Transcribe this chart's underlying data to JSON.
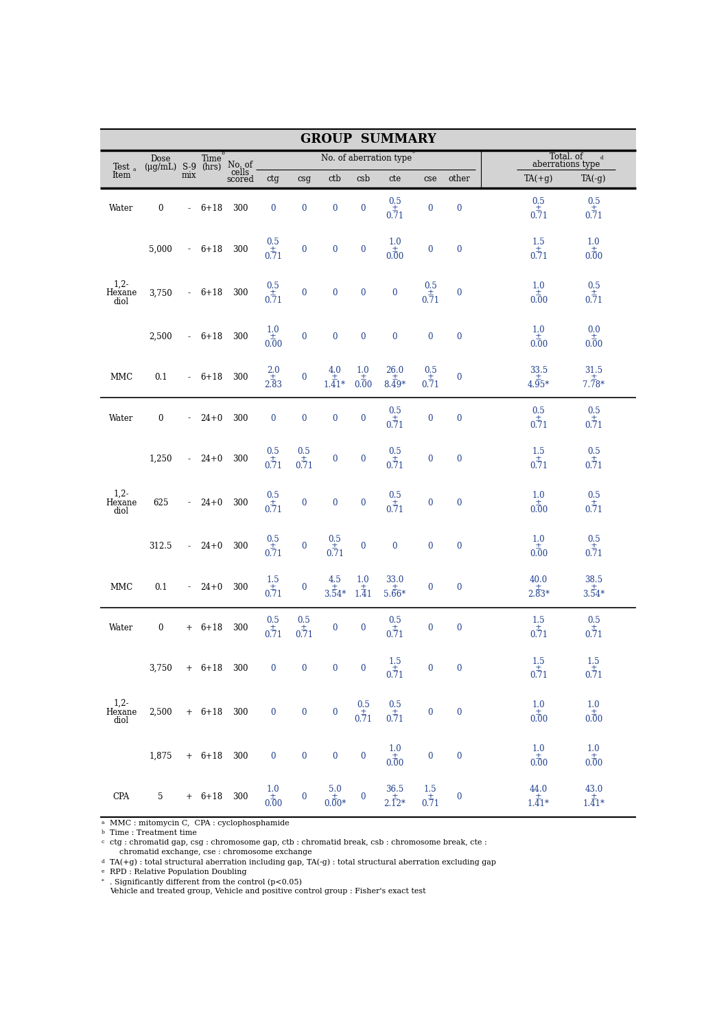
{
  "title": "GROUP  SUMMARY",
  "footnotes": [
    [
      "a",
      "MMC : mitomycin C,  CPA : cyclophosphamide"
    ],
    [
      "b",
      "Time : Treatment time"
    ],
    [
      "c",
      "ctg : chromatid gap, csg : chromosome gap, ctb : chromatid break, csb : chromosome break, cte :"
    ],
    [
      "",
      "    chromatid exchange, cse : chromosome exchange"
    ],
    [
      "d",
      "TA(+g) : total structural aberration including gap, TA(-g) : total structural aberration excluding gap"
    ],
    [
      "e",
      "RPD : Relative Population Doubling"
    ],
    [
      "*",
      ". Significantly different from the control (p<0.05)"
    ],
    [
      "",
      "Vehicle and treated group, Vehicle and positive control group : Fisher's exact test"
    ]
  ],
  "rows": [
    {
      "item": "Water",
      "dose": "0",
      "s9": "-",
      "time": "6+18",
      "cells": "300",
      "ctg": "0",
      "csg": "0",
      "ctb": "0",
      "csb": "0",
      "cte": "0.5\n±\n0.71",
      "cse": "0",
      "other": "0",
      "ta_plus": "0.5\n±\n0.71",
      "ta_minus": "0.5\n±\n0.71",
      "group": 1
    },
    {
      "item": "",
      "dose": "5,000",
      "s9": "-",
      "time": "6+18",
      "cells": "300",
      "ctg": "0.5\n±\n0.71",
      "csg": "0",
      "ctb": "0",
      "csb": "0",
      "cte": "1.0\n±\n0.00",
      "cse": "0",
      "other": "0",
      "ta_plus": "1.5\n±\n0.71",
      "ta_minus": "1.0\n±\n0.00",
      "group": 1
    },
    {
      "item": "1,2-\nHexane\ndiol",
      "dose": "3,750",
      "s9": "-",
      "time": "6+18",
      "cells": "300",
      "ctg": "0.5\n±\n0.71",
      "csg": "0",
      "ctb": "0",
      "csb": "0",
      "cte": "0",
      "cse": "0.5\n±\n0.71",
      "other": "0",
      "ta_plus": "1.0\n±\n0.00",
      "ta_minus": "0.5\n±\n0.71",
      "group": 1
    },
    {
      "item": "",
      "dose": "2,500",
      "s9": "-",
      "time": "6+18",
      "cells": "300",
      "ctg": "1.0\n±\n0.00",
      "csg": "0",
      "ctb": "0",
      "csb": "0",
      "cte": "0",
      "cse": "0",
      "other": "0",
      "ta_plus": "1.0\n±\n0.00",
      "ta_minus": "0.0\n±\n0.00",
      "group": 1
    },
    {
      "item": "MMC",
      "dose": "0.1",
      "s9": "-",
      "time": "6+18",
      "cells": "300",
      "ctg": "2.0\n±\n2.83",
      "csg": "0",
      "ctb": "4.0\n±\n1.41*",
      "csb": "1.0\n±\n0.00",
      "cte": "26.0\n±\n8.49*",
      "cse": "0.5\n±\n0.71",
      "other": "0",
      "ta_plus": "33.5\n±\n4.95*",
      "ta_minus": "31.5\n±\n7.78*",
      "group": 1
    },
    {
      "item": "Water",
      "dose": "0",
      "s9": "-",
      "time": "24+0",
      "cells": "300",
      "ctg": "0",
      "csg": "0",
      "ctb": "0",
      "csb": "0",
      "cte": "0.5\n±\n0.71",
      "cse": "0",
      "other": "0",
      "ta_plus": "0.5\n±\n0.71",
      "ta_minus": "0.5\n±\n0.71",
      "group": 2
    },
    {
      "item": "",
      "dose": "1,250",
      "s9": "-",
      "time": "24+0",
      "cells": "300",
      "ctg": "0.5\n±\n0.71",
      "csg": "0.5\n±\n0.71",
      "ctb": "0",
      "csb": "0",
      "cte": "0.5\n±\n0.71",
      "cse": "0",
      "other": "0",
      "ta_plus": "1.5\n±\n0.71",
      "ta_minus": "0.5\n±\n0.71",
      "group": 2
    },
    {
      "item": "1,2-\nHexane\ndiol",
      "dose": "625",
      "s9": "-",
      "time": "24+0",
      "cells": "300",
      "ctg": "0.5\n±\n0.71",
      "csg": "0",
      "ctb": "0",
      "csb": "0",
      "cte": "0.5\n±\n0.71",
      "cse": "0",
      "other": "0",
      "ta_plus": "1.0\n±\n0.00",
      "ta_minus": "0.5\n±\n0.71",
      "group": 2
    },
    {
      "item": "",
      "dose": "312.5",
      "s9": "-",
      "time": "24+0",
      "cells": "300",
      "ctg": "0.5\n±\n0.71",
      "csg": "0",
      "ctb": "0.5\n±\n0.71",
      "csb": "0",
      "cte": "0",
      "cse": "0",
      "other": "0",
      "ta_plus": "1.0\n±\n0.00",
      "ta_minus": "0.5\n±\n0.71",
      "group": 2
    },
    {
      "item": "MMC",
      "dose": "0.1",
      "s9": "-",
      "time": "24+0",
      "cells": "300",
      "ctg": "1.5\n±\n0.71",
      "csg": "0",
      "ctb": "4.5\n±\n3.54*",
      "csb": "1.0\n±\n1.41",
      "cte": "33.0\n±\n5.66*",
      "cse": "0",
      "other": "0",
      "ta_plus": "40.0\n±\n2.83*",
      "ta_minus": "38.5\n±\n3.54*",
      "group": 2
    },
    {
      "item": "Water",
      "dose": "0",
      "s9": "+",
      "time": "6+18",
      "cells": "300",
      "ctg": "0.5\n±\n0.71",
      "csg": "0.5\n±\n0.71",
      "ctb": "0",
      "csb": "0",
      "cte": "0.5\n±\n0.71",
      "cse": "0",
      "other": "0",
      "ta_plus": "1.5\n±\n0.71",
      "ta_minus": "0.5\n±\n0.71",
      "group": 3
    },
    {
      "item": "",
      "dose": "3,750",
      "s9": "+",
      "time": "6+18",
      "cells": "300",
      "ctg": "0",
      "csg": "0",
      "ctb": "0",
      "csb": "0",
      "cte": "1.5\n±\n0.71",
      "cse": "0",
      "other": "0",
      "ta_plus": "1.5\n±\n0.71",
      "ta_minus": "1.5\n±\n0.71",
      "group": 3
    },
    {
      "item": "1,2-\nHexane\ndiol",
      "dose": "2,500",
      "s9": "+",
      "time": "6+18",
      "cells": "300",
      "ctg": "0",
      "csg": "0",
      "ctb": "0",
      "csb": "0.5\n±\n0.71",
      "cte": "0.5\n±\n0.71",
      "cse": "0",
      "other": "0",
      "ta_plus": "1.0\n±\n0.00",
      "ta_minus": "1.0\n±\n0.00",
      "group": 3
    },
    {
      "item": "",
      "dose": "1,875",
      "s9": "+",
      "time": "6+18",
      "cells": "300",
      "ctg": "0",
      "csg": "0",
      "ctb": "0",
      "csb": "0",
      "cte": "1.0\n±\n0.00",
      "cse": "0",
      "other": "0",
      "ta_plus": "1.0\n±\n0.00",
      "ta_minus": "1.0\n±\n0.00",
      "group": 3
    },
    {
      "item": "CPA",
      "dose": "5",
      "s9": "+",
      "time": "6+18",
      "cells": "300",
      "ctg": "1.0\n±\n0.00",
      "csg": "0",
      "ctb": "5.0\n±\n0.00*",
      "csb": "0",
      "cte": "36.5\n±\n2.12*",
      "cse": "1.5\n±\n0.71",
      "other": "0",
      "ta_plus": "44.0\n±\n1.41*",
      "ta_minus": "43.0\n±\n1.41*",
      "group": 3
    }
  ],
  "gray_bg": "#d3d3d3",
  "data_color": "#1a3a8a",
  "black": "#000000"
}
